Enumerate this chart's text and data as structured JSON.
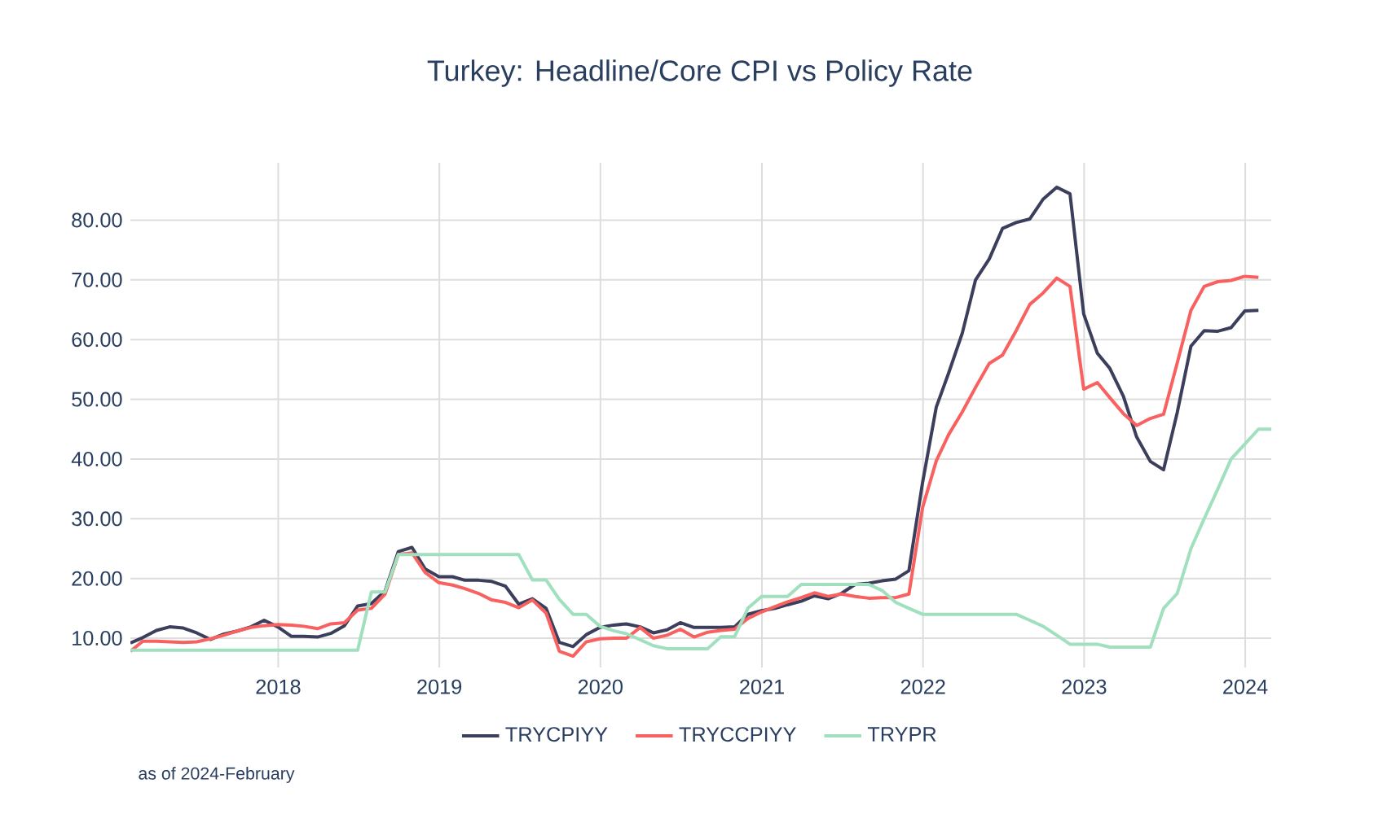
{
  "chart_data": {
    "type": "line",
    "title": "Turkey: Headline/Core CPI vs Policy Rate",
    "annotations": [
      "as of 2024-February"
    ],
    "x": [
      "2017-01-31",
      "2017-02-28",
      "2017-03-31",
      "2017-04-30",
      "2017-05-31",
      "2017-06-30",
      "2017-07-31",
      "2017-08-31",
      "2017-09-30",
      "2017-10-31",
      "2017-11-30",
      "2017-12-31",
      "2018-01-31",
      "2018-02-28",
      "2018-03-31",
      "2018-04-30",
      "2018-05-31",
      "2018-06-30",
      "2018-07-31",
      "2018-08-31",
      "2018-09-30",
      "2018-10-31",
      "2018-11-30",
      "2018-12-31",
      "2019-01-31",
      "2019-02-28",
      "2019-03-31",
      "2019-04-30",
      "2019-05-31",
      "2019-06-30",
      "2019-07-31",
      "2019-08-31",
      "2019-09-30",
      "2019-10-31",
      "2019-11-30",
      "2019-12-31",
      "2020-01-31",
      "2020-02-29",
      "2020-03-31",
      "2020-04-30",
      "2020-05-31",
      "2020-06-30",
      "2020-07-31",
      "2020-08-31",
      "2020-09-30",
      "2020-10-31",
      "2020-11-30",
      "2020-12-31",
      "2021-01-31",
      "2021-02-28",
      "2021-03-31",
      "2021-04-30",
      "2021-05-31",
      "2021-06-30",
      "2021-07-31",
      "2021-08-31",
      "2021-09-30",
      "2021-10-31",
      "2021-11-30",
      "2021-12-31",
      "2022-01-31",
      "2022-02-28",
      "2022-03-31",
      "2022-04-30",
      "2022-05-31",
      "2022-06-30",
      "2022-07-31",
      "2022-08-31",
      "2022-09-30",
      "2022-10-31",
      "2022-11-30",
      "2022-12-31",
      "2023-01-31",
      "2023-02-28",
      "2023-03-31",
      "2023-04-30",
      "2023-05-31",
      "2023-06-30",
      "2023-07-31",
      "2023-08-31",
      "2023-09-30",
      "2023-10-31",
      "2023-11-30",
      "2023-12-31",
      "2024-01-31",
      "2024-02-29"
    ],
    "series": [
      {
        "name": "TRYCPIYY",
        "color": "#3b3f5c",
        "values": [
          9.2,
          10.1,
          11.3,
          11.9,
          11.7,
          10.9,
          9.8,
          10.7,
          11.2,
          11.9,
          13.0,
          11.9,
          10.3,
          10.3,
          10.2,
          10.8,
          12.1,
          15.4,
          15.8,
          17.9,
          24.5,
          25.2,
          21.6,
          20.3,
          20.3,
          19.7,
          19.7,
          19.5,
          18.7,
          15.7,
          16.6,
          15.0,
          9.3,
          8.6,
          10.6,
          11.8,
          12.2,
          12.4,
          11.9,
          10.9,
          11.4,
          12.6,
          11.8,
          11.8,
          11.8,
          11.9,
          14.0,
          14.6,
          15.0,
          15.6,
          16.2,
          17.1,
          16.6,
          17.5,
          19.0,
          19.2,
          19.6,
          19.9,
          21.3,
          36.1,
          48.7,
          54.4,
          61.1,
          70.0,
          73.5,
          78.6,
          79.6,
          80.2,
          83.5,
          85.5,
          84.4,
          64.3,
          57.7,
          55.2,
          50.5,
          43.7,
          39.6,
          38.2,
          47.8,
          58.9,
          61.5,
          61.4,
          62.0,
          64.8,
          64.9,
          null
        ]
      },
      {
        "name": "TRYCCPIYY",
        "color": "#f8615f",
        "values": [
          7.8,
          9.5,
          9.5,
          9.4,
          9.3,
          9.4,
          9.9,
          10.5,
          11.2,
          11.8,
          12.1,
          12.3,
          12.2,
          12.0,
          11.6,
          12.4,
          12.6,
          14.7,
          15.0,
          17.4,
          24.0,
          24.3,
          21.0,
          19.3,
          18.9,
          18.3,
          17.5,
          16.4,
          16.0,
          15.1,
          16.4,
          14.2,
          7.8,
          7.0,
          9.4,
          9.9,
          10.0,
          10.0,
          11.8,
          10.0,
          10.5,
          11.5,
          10.2,
          11.0,
          11.3,
          11.5,
          13.3,
          14.4,
          15.3,
          16.1,
          16.8,
          17.6,
          17.0,
          17.4,
          17.0,
          16.7,
          16.8,
          16.8,
          17.4,
          31.9,
          39.7,
          44.1,
          47.9,
          52.0,
          56.0,
          57.4,
          61.5,
          65.9,
          67.8,
          70.3,
          68.9,
          51.7,
          52.8,
          50.3,
          47.6,
          45.6,
          46.8,
          47.5,
          56.1,
          64.9,
          68.9,
          69.7,
          69.9,
          70.6,
          70.4,
          null
        ]
      },
      {
        "name": "TRYPR",
        "color": "#a0e0bf",
        "values": [
          8,
          8,
          8,
          8,
          8,
          8,
          8,
          8,
          8,
          8,
          8,
          8,
          8,
          8,
          8,
          8,
          8,
          8,
          17.75,
          17.75,
          24,
          24,
          24,
          24,
          24,
          24,
          24,
          24,
          24,
          24,
          19.75,
          19.75,
          16.5,
          14,
          14,
          12,
          11.25,
          10.75,
          9.75,
          8.75,
          8.25,
          8.25,
          8.25,
          8.25,
          10.25,
          10.25,
          15,
          17,
          17,
          17,
          19,
          19,
          19,
          19,
          19,
          19,
          18,
          16,
          15,
          14,
          14,
          14,
          14,
          14,
          14,
          14,
          14,
          13,
          12,
          10.5,
          9,
          9,
          9,
          8.5,
          8.5,
          8.5,
          8.5,
          15,
          17.5,
          25,
          30,
          35,
          40,
          42.5,
          45,
          45
        ]
      }
    ],
    "xlim": [
      "2017-01-31",
      "2024-02-29"
    ],
    "xticks": [
      "2018",
      "2019",
      "2020",
      "2021",
      "2022",
      "2023",
      "2024"
    ],
    "ylim": [
      5.1,
      89.6
    ],
    "yticks": [
      {
        "value": 10,
        "label": "10.00"
      },
      {
        "value": 20,
        "label": "20.00"
      },
      {
        "value": 30,
        "label": "30.00"
      },
      {
        "value": 40,
        "label": "40.00"
      },
      {
        "value": 50,
        "label": "50.00"
      },
      {
        "value": 60,
        "label": "60.00"
      },
      {
        "value": 70,
        "label": "70.00"
      },
      {
        "value": 80,
        "label": "80.00"
      }
    ],
    "grid": true,
    "legend": "bottom",
    "marker": "none",
    "line_style": "solid"
  }
}
